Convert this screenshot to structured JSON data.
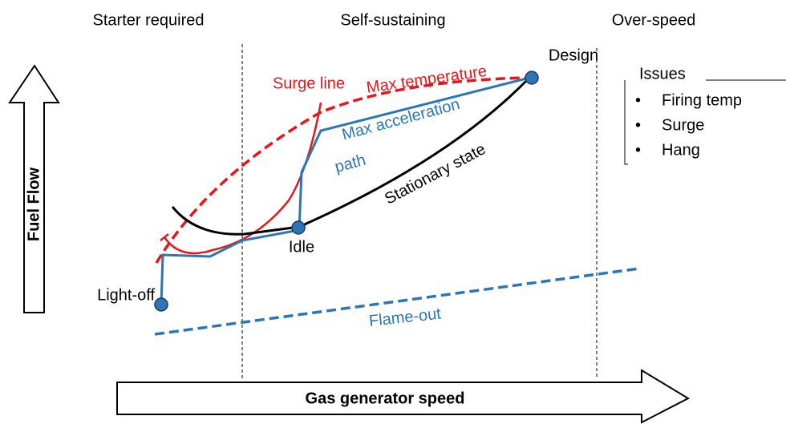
{
  "regions": [
    "Starter required",
    "Self-sustaining",
    "Over-speed"
  ],
  "axes": {
    "y": "Fuel Flow",
    "x": "Gas generator speed"
  },
  "points": {
    "design": "Design",
    "idle": "Idle",
    "light_off": "Light-off"
  },
  "curves": {
    "surge": "Surge line",
    "max_temp": "Max temperature",
    "max_accel": [
      "Max acceleration",
      "path"
    ],
    "stationary": "Stationary state",
    "flame_out": "Flame-out"
  },
  "issues": {
    "title": "Issues",
    "items": [
      "Firing temp",
      "Surge",
      "Hang"
    ]
  }
}
